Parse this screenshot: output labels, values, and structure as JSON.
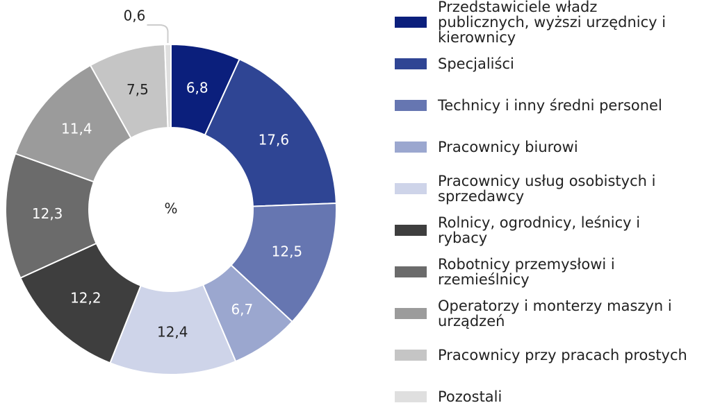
{
  "chart_data": {
    "type": "donut",
    "center_label": "%",
    "categories": [
      "Przedstawiciele władz publicznych, wyższi urzędnicy i kierownicy",
      "Specjaliści",
      "Technicy i inny średni personel",
      "Pracownicy biurowi",
      "Pracownicy usług osobistych i sprzedawcy",
      "Rolnicy, ogrodnicy, leśnicy i rybacy",
      "Robotnicy przemysłowi i rzemieślnicy",
      "Operatorzy i monterzy maszyn i urządzeń",
      "Pracownicy przy pracach prostych",
      "Pozostali"
    ],
    "values": [
      6.8,
      17.6,
      12.5,
      6.7,
      12.4,
      12.2,
      12.3,
      11.4,
      7.5,
      0.6
    ],
    "value_labels": [
      "6,8",
      "17,6",
      "12,5",
      "6,7",
      "12,4",
      "12,2",
      "12,3",
      "11,4",
      "7,5",
      "0,6"
    ],
    "colors": [
      "#0b1f7c",
      "#2f4594",
      "#6676b1",
      "#9ba7cf",
      "#ced4e9",
      "#3e3e3e",
      "#6b6b6b",
      "#9b9b9b",
      "#c5c5c5",
      "#dfdfdf"
    ]
  }
}
